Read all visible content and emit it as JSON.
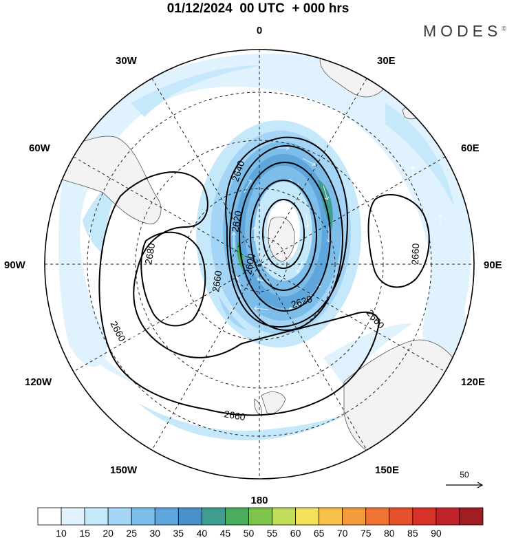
{
  "title": "01/12/2024  00 UTC  + 000 hrs",
  "brand": "MODES",
  "brand_mark": "©",
  "longitude_labels": {
    "top": "0",
    "n30e": "30E",
    "n60e": "60E",
    "e90": "90E",
    "s120e": "120E",
    "s150e": "150E",
    "bottom": "180",
    "s150w": "150W",
    "s120w": "120W",
    "w90": "90W",
    "n60w": "60W",
    "n30w": "30W"
  },
  "contour_labels": [
    "2640",
    "2620",
    "2600",
    "2620",
    "2660",
    "2680",
    "2660",
    "2660",
    "2660",
    "2660"
  ],
  "reference_vector": "50",
  "colorbar": {
    "colors": [
      "#ffffff",
      "#dff2fd",
      "#c5e8fb",
      "#a5d5f6",
      "#7cbde9",
      "#5ea6dc",
      "#4a90c9",
      "#3f9c90",
      "#49ad5c",
      "#7ec44c",
      "#bfdc5a",
      "#f5e05c",
      "#f7c04a",
      "#f39a3c",
      "#ef7433",
      "#e5502d",
      "#d63227",
      "#c2232a",
      "#a11d24"
    ],
    "ticks": [
      "10",
      "15",
      "20",
      "25",
      "30",
      "35",
      "40",
      "45",
      "50",
      "55",
      "60",
      "65",
      "70",
      "75",
      "80",
      "85",
      "90"
    ]
  }
}
